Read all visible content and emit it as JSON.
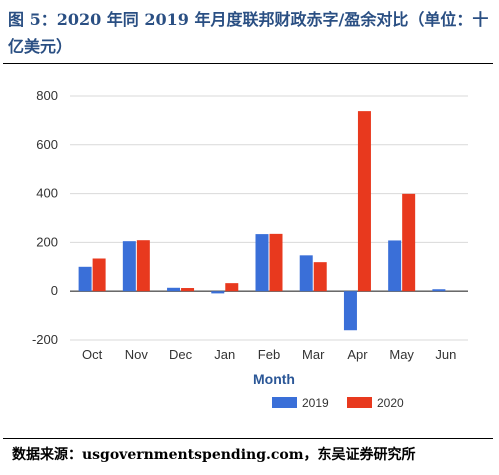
{
  "figure": {
    "title": "图 5：2020 年同 2019 年月度联邦财政赤字/盈余对比（单位：十亿美元）",
    "source": "数据来源：usgovernmentspending.com，东吴证券研究所"
  },
  "colors": {
    "series_2019": "#3a6fd8",
    "series_2020": "#e8391e",
    "grid": "#d9d9d9"
  },
  "chart_data": {
    "type": "bar",
    "title": "",
    "xlabel": "Month",
    "ylabel": "",
    "categories": [
      "Oct",
      "Nov",
      "Dec",
      "Jan",
      "Feb",
      "Mar",
      "Apr",
      "May",
      "Jun"
    ],
    "series": [
      {
        "name": "2019",
        "values": [
          100,
          205,
          14,
          -9,
          234,
          147,
          -160,
          208,
          8
        ]
      },
      {
        "name": "2020",
        "values": [
          134,
          209,
          13,
          33,
          235,
          119,
          738,
          399,
          null
        ]
      }
    ],
    "yticks": [
      -200,
      0,
      200,
      400,
      600,
      800
    ],
    "ylim": [
      -200,
      800
    ],
    "grid": true,
    "legend_position": "bottom"
  }
}
